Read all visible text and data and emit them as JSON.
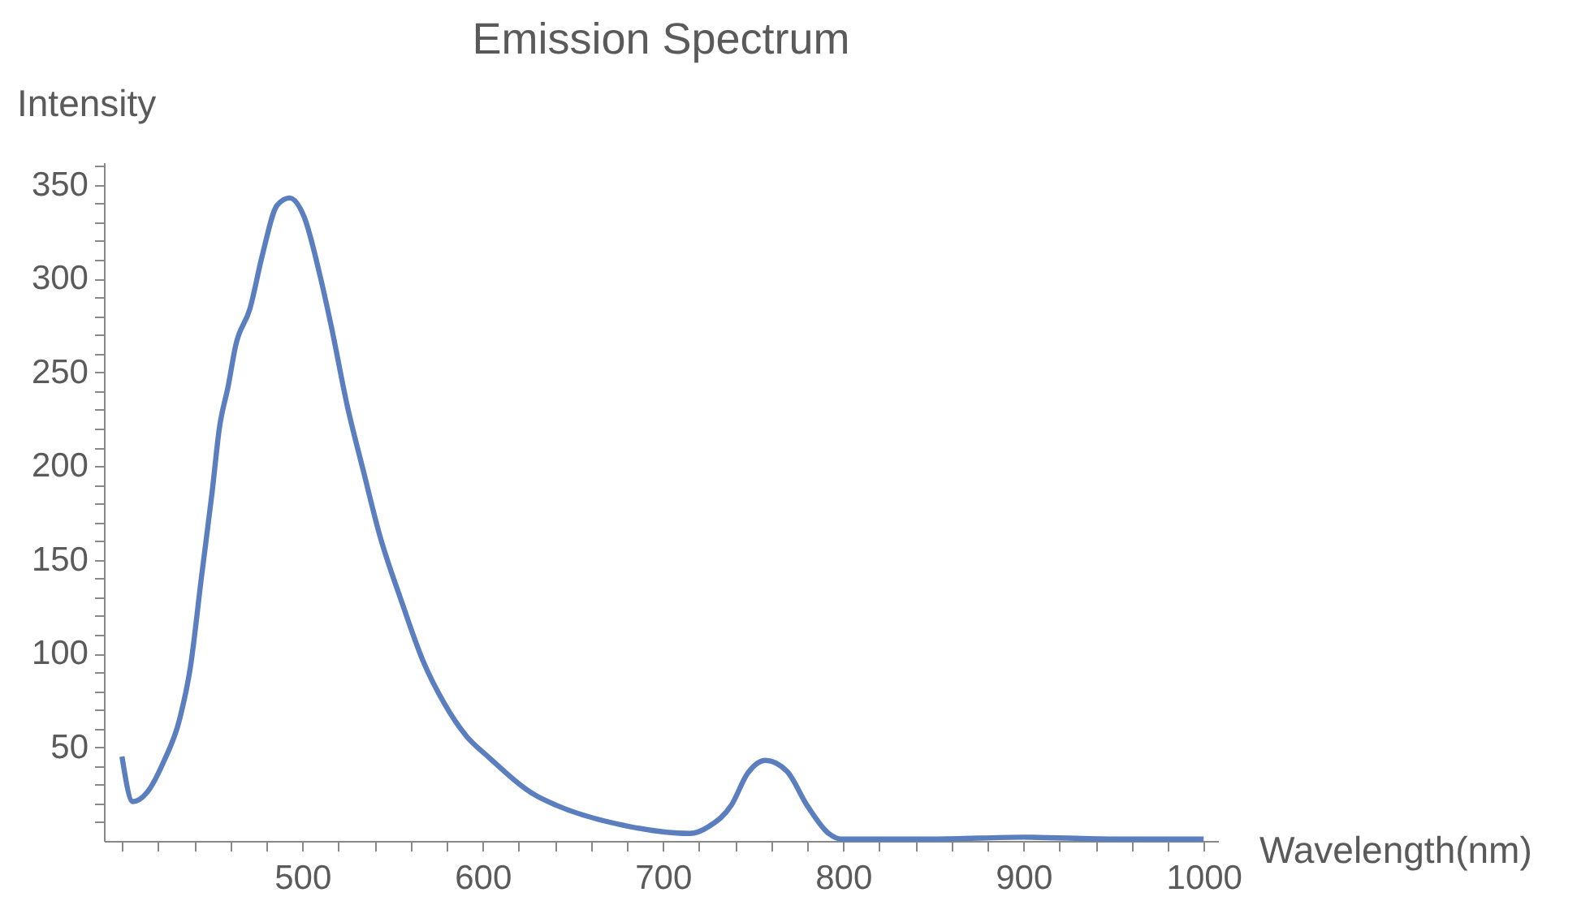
{
  "chart_data": {
    "type": "line",
    "title": "Emission Spectrum",
    "xlabel": "Wavelength(nm)",
    "ylabel": "Intensity",
    "x": [
      400,
      406,
      414,
      423,
      432,
      438,
      444,
      450,
      454,
      459,
      463,
      471,
      478,
      486,
      493,
      501,
      510,
      516,
      525,
      534,
      543,
      555,
      567,
      579,
      591,
      603,
      630,
      641,
      680,
      715,
      726,
      738,
      747,
      757,
      769,
      780,
      792,
      799,
      850,
      900,
      950,
      1000
    ],
    "series": [
      {
        "color": "#5b7fbe",
        "values": [
          45,
          21,
          26,
          42,
          65,
          93,
          140,
          186,
          220,
          243,
          264,
          284,
          313,
          339,
          343,
          333,
          301,
          275,
          232,
          197,
          163,
          128,
          96,
          73,
          56,
          45,
          24,
          19,
          8,
          4,
          8,
          19,
          36,
          43,
          37,
          19,
          4,
          1,
          1,
          2,
          1,
          1
        ]
      }
    ],
    "xlim": [
      390,
      1008
    ],
    "ylim": [
      0,
      362
    ],
    "xticks": [
      {
        "value": 400,
        "label": null
      },
      {
        "value": 420,
        "label": null
      },
      {
        "value": 440,
        "label": null
      },
      {
        "value": 460,
        "label": null
      },
      {
        "value": 480,
        "label": null
      },
      500,
      {
        "value": 520,
        "label": null
      },
      {
        "value": 540,
        "label": null
      },
      {
        "value": 560,
        "label": null
      },
      {
        "value": 580,
        "label": null
      },
      600,
      {
        "value": 620,
        "label": null
      },
      {
        "value": 640,
        "label": null
      },
      {
        "value": 660,
        "label": null
      },
      {
        "value": 680,
        "label": null
      },
      700,
      {
        "value": 720,
        "label": null
      },
      {
        "value": 740,
        "label": null
      },
      {
        "value": 760,
        "label": null
      },
      {
        "value": 780,
        "label": null
      },
      800,
      {
        "value": 820,
        "label": null
      },
      {
        "value": 840,
        "label": null
      },
      {
        "value": 860,
        "label": null
      },
      {
        "value": 880,
        "label": null
      },
      900,
      {
        "value": 920,
        "label": null
      },
      {
        "value": 940,
        "label": null
      },
      {
        "value": 960,
        "label": null
      },
      {
        "value": 980,
        "label": null
      },
      1000
    ],
    "yticks": [
      {
        "value": 10,
        "label": null
      },
      {
        "value": 20,
        "label": null
      },
      {
        "value": 30,
        "label": null
      },
      {
        "value": 40,
        "label": null
      },
      50,
      {
        "value": 60,
        "label": null
      },
      {
        "value": 70,
        "label": null
      },
      {
        "value": 80,
        "label": null
      },
      {
        "value": 90,
        "label": null
      },
      100,
      {
        "value": 110,
        "label": null
      },
      {
        "value": 120,
        "label": null
      },
      {
        "value": 130,
        "label": null
      },
      {
        "value": 140,
        "label": null
      },
      150,
      {
        "value": 160,
        "label": null
      },
      {
        "value": 170,
        "label": null
      },
      {
        "value": 180,
        "label": null
      },
      {
        "value": 190,
        "label": null
      },
      200,
      {
        "value": 210,
        "label": null
      },
      {
        "value": 220,
        "label": null
      },
      {
        "value": 230,
        "label": null
      },
      {
        "value": 240,
        "label": null
      },
      250,
      {
        "value": 260,
        "label": null
      },
      {
        "value": 270,
        "label": null
      },
      {
        "value": 280,
        "label": null
      },
      {
        "value": 290,
        "label": null
      },
      300,
      {
        "value": 310,
        "label": null
      },
      {
        "value": 320,
        "label": null
      },
      {
        "value": 330,
        "label": null
      },
      {
        "value": 340,
        "label": null
      },
      350,
      {
        "value": 360,
        "label": null
      }
    ],
    "grid": false,
    "marker": "none",
    "line_style": "solid"
  }
}
